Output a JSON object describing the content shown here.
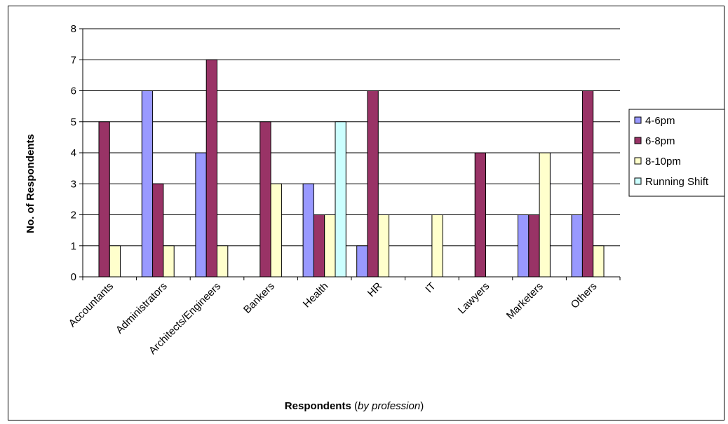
{
  "chart_data": {
    "type": "bar",
    "title": "",
    "ylabel": "No. of Respondents",
    "xlabel": {
      "main": "Respondents",
      "open": " (",
      "qualifier": "by profession",
      "close": ")"
    },
    "ylim": [
      0,
      8
    ],
    "yticks": [
      0,
      1,
      2,
      3,
      4,
      5,
      6,
      7,
      8
    ],
    "grid": true,
    "legend_position": "right",
    "categories": [
      "Accountants",
      "Administrators",
      "Architects/Engineers",
      "Bankers",
      "Health",
      "HR",
      "IT",
      "Lawyers",
      "Marketers",
      "Others"
    ],
    "series": [
      {
        "name": "4-6pm",
        "color": "#9999ff",
        "values": [
          0,
          6,
          4,
          0,
          3,
          1,
          0,
          0,
          2,
          2
        ]
      },
      {
        "name": "6-8pm",
        "color": "#993366",
        "values": [
          5,
          3,
          7,
          5,
          2,
          6,
          0,
          4,
          2,
          6
        ]
      },
      {
        "name": "8-10pm",
        "color": "#ffffcc",
        "values": [
          1,
          1,
          1,
          3,
          2,
          2,
          2,
          0,
          4,
          1
        ]
      },
      {
        "name": "Running Shift",
        "color": "#ccffff",
        "values": [
          0,
          0,
          0,
          0,
          5,
          0,
          0,
          0,
          0,
          0
        ]
      }
    ]
  }
}
